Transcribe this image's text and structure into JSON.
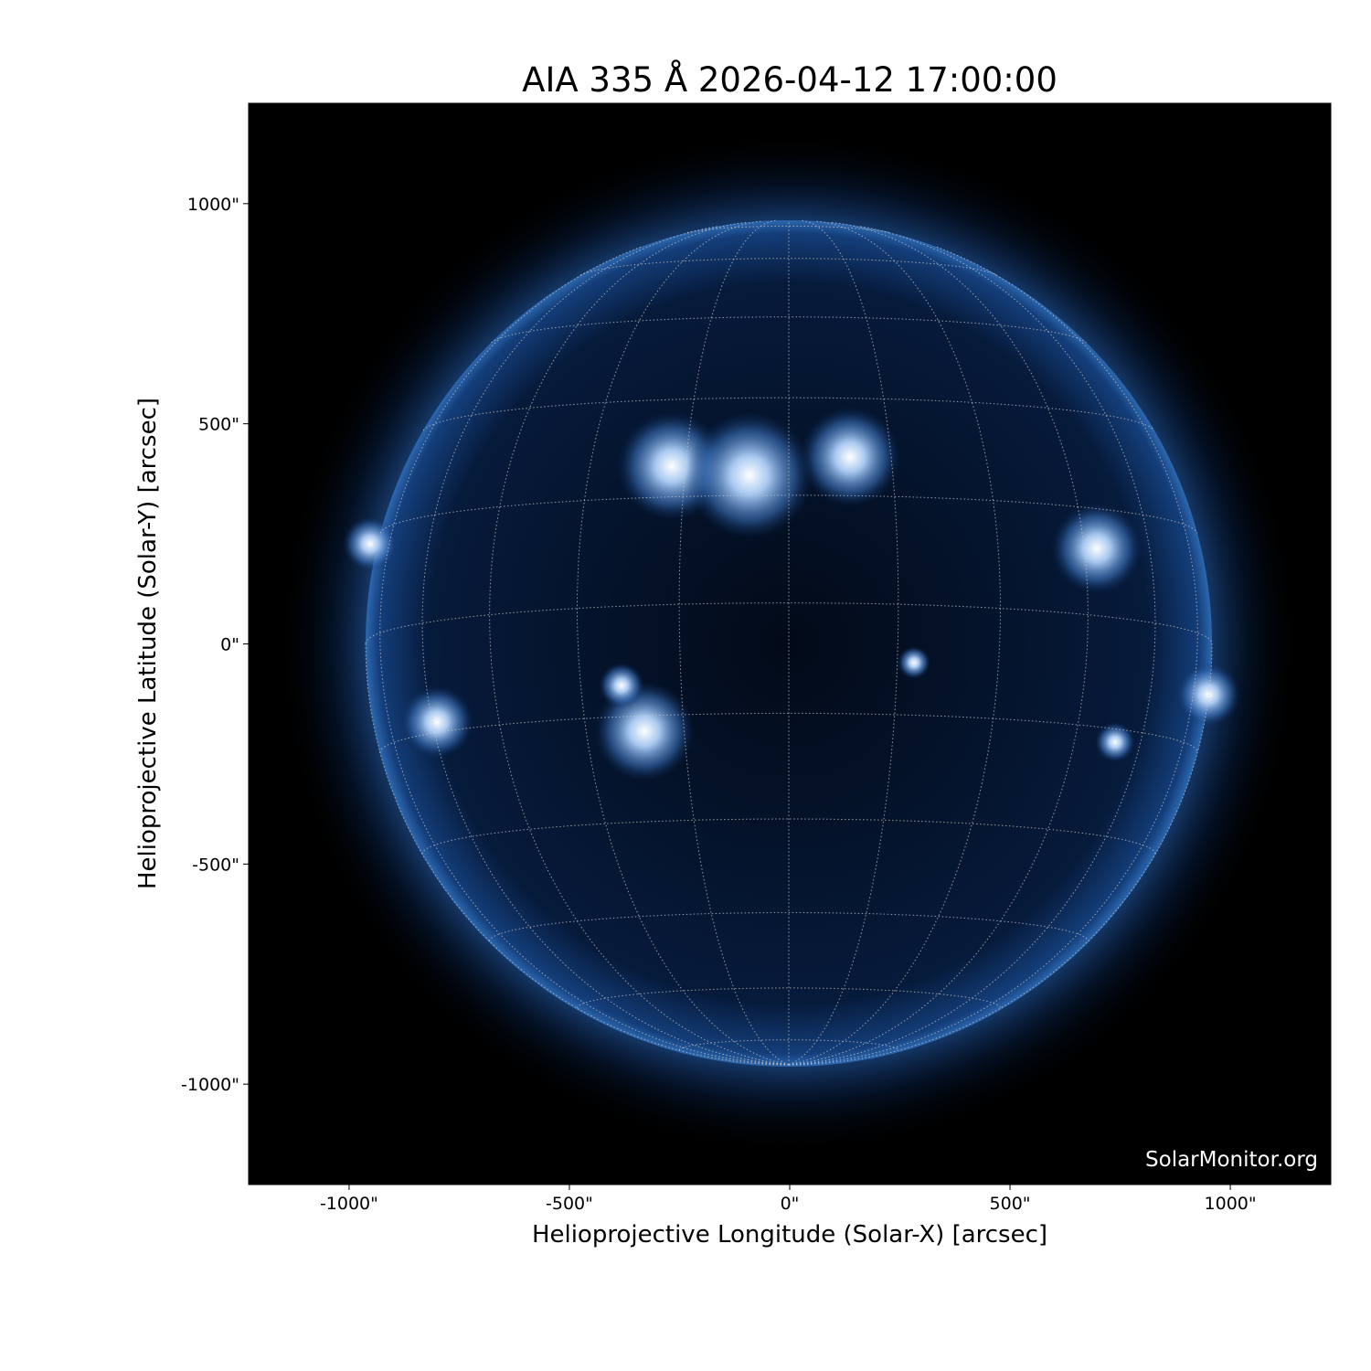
{
  "chart_data": {
    "type": "image",
    "title": "AIA 335 Å 2026-04-12 17:00:00",
    "xlabel": "Helioprojective Longitude (Solar-X) [arcsec]",
    "ylabel": "Helioprojective Latitude (Solar-Y) [arcsec]",
    "xticks": [
      -1000,
      -500,
      0,
      500,
      1000
    ],
    "xtick_labels": [
      "-1000\"",
      "-500\"",
      "0\"",
      "500\"",
      "1000\""
    ],
    "yticks": [
      1000,
      500,
      0,
      -500,
      -1000
    ],
    "ytick_labels": [
      "1000\"",
      "500\"",
      "0\"",
      "-500\"",
      "-1000\""
    ],
    "xlim": [
      -1228,
      1228
    ],
    "ylim": [
      -1228,
      1228
    ],
    "grid": "heliographic lat/lon, dotted",
    "grid_spacing_deg": 15,
    "colormap": [
      "#000000",
      "#0a2a5c",
      "#2860a8",
      "#8db4e6",
      "#ffffff"
    ],
    "background": "#000000"
  },
  "watermark": "SolarMonitor.org"
}
